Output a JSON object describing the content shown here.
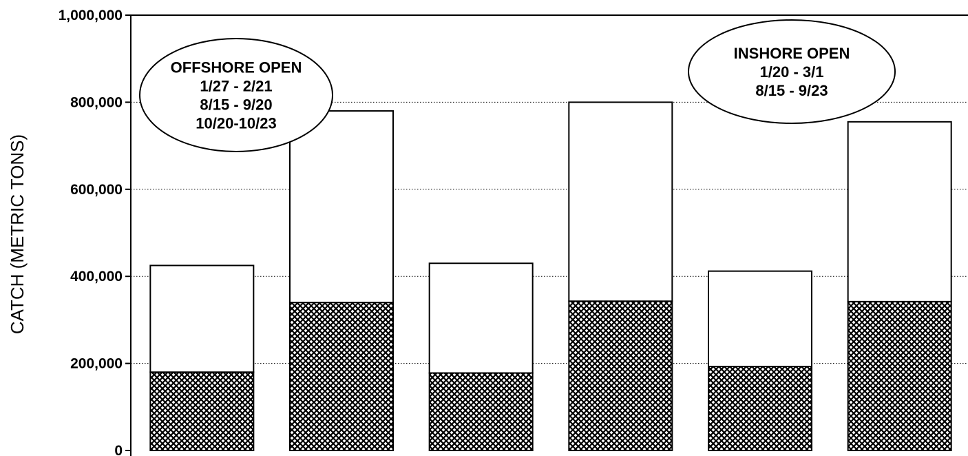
{
  "chart_data": {
    "type": "bar",
    "stacked": true,
    "title": "",
    "xlabel": "",
    "ylabel": "CATCH (METRIC TONS)",
    "ylim": [
      0,
      1000000
    ],
    "yticks": [
      0,
      200000,
      400000,
      600000,
      800000,
      1000000
    ],
    "ytick_labels": [
      "0",
      "200,000",
      "400,000",
      "600,000",
      "800,000",
      "1,000,000"
    ],
    "grid": "horizontal dotted",
    "categories": [
      "",
      "",
      "",
      "",
      "",
      ""
    ],
    "series": [
      {
        "pattern": "crosshatch",
        "values": [
          180000,
          340000,
          178000,
          343000,
          193000,
          342000
        ]
      },
      {
        "pattern": "white",
        "values": [
          245000,
          440000,
          252000,
          457000,
          219000,
          413000
        ]
      }
    ],
    "totals": [
      425000,
      780000,
      430000,
      800000,
      412000,
      755000
    ],
    "annotations": [
      {
        "lines": [
          "OFFSHORE OPEN",
          "1/27 - 2/21",
          "8/15 - 9/20",
          "10/20-10/23"
        ]
      },
      {
        "lines": [
          "INSHORE OPEN",
          "1/20 - 3/1",
          "8/15 - 9/23"
        ]
      }
    ]
  }
}
